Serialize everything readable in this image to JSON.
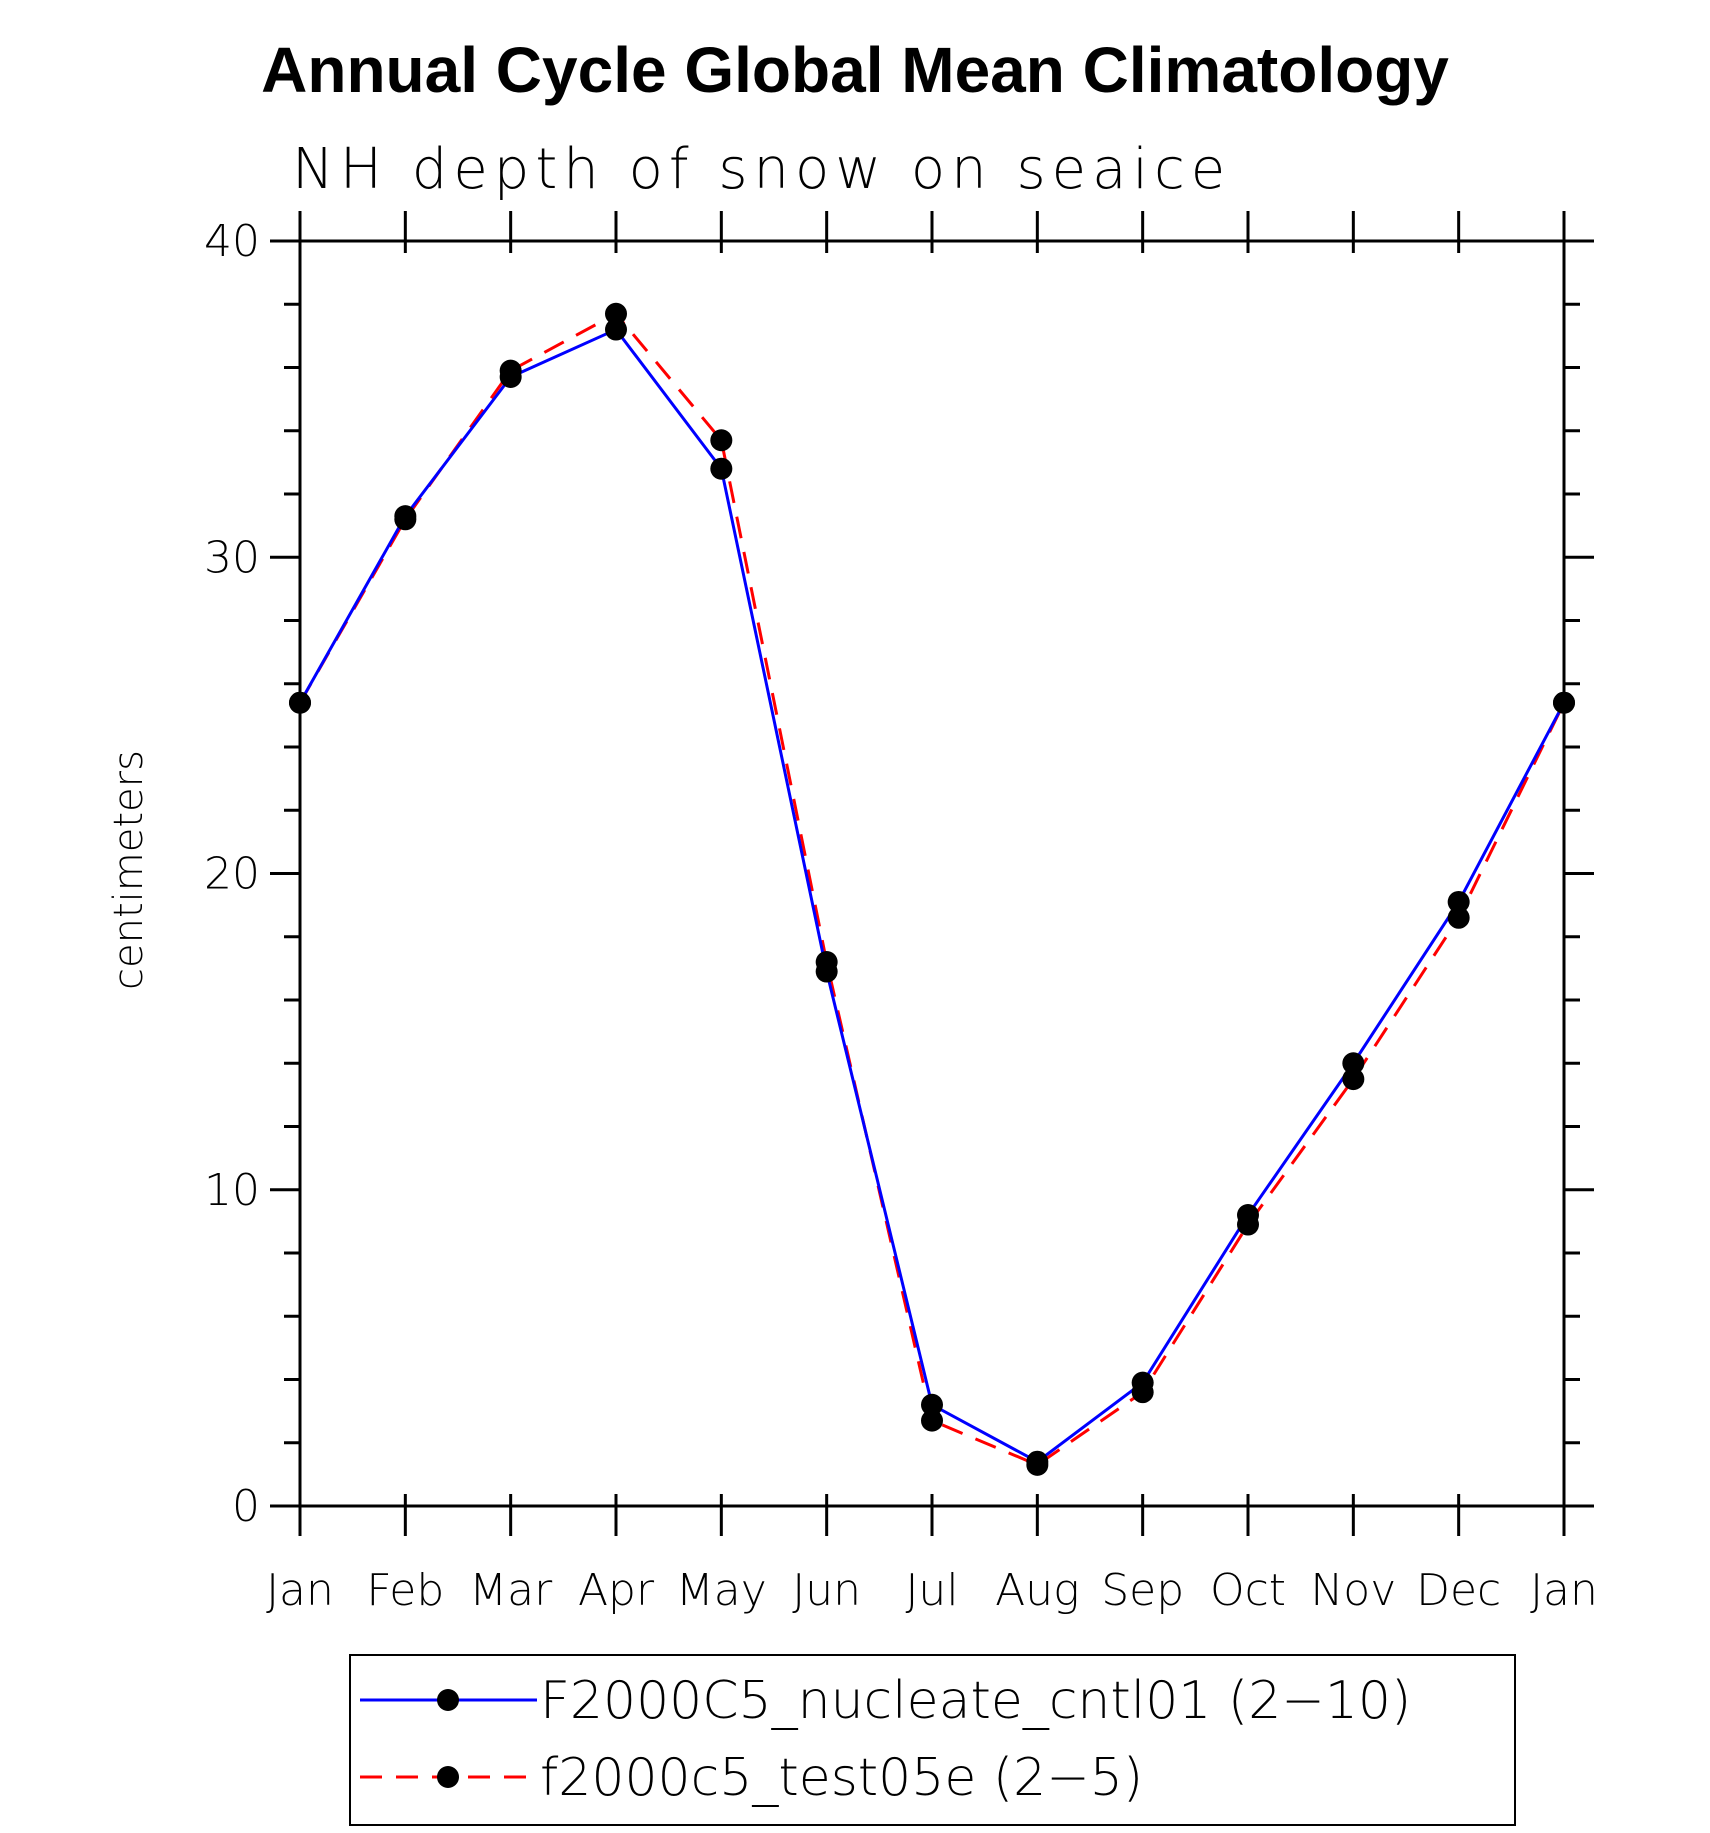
{
  "chart_data": {
    "type": "line",
    "title": "Annual Cycle Global Mean Climatology",
    "subtitle": "NH depth of snow on seaice",
    "xlabel": "",
    "ylabel": "centimeters",
    "categories": [
      "Jan",
      "Feb",
      "Mar",
      "Apr",
      "May",
      "Jun",
      "Jul",
      "Aug",
      "Sep",
      "Oct",
      "Nov",
      "Dec",
      "Jan"
    ],
    "yticks": [
      "0",
      "10",
      "20",
      "30",
      "40"
    ],
    "ylim": [
      0,
      40
    ],
    "grid": false,
    "legend_position": "bottom",
    "series": [
      {
        "name": "F2000C5_nucleate_cntl01 (2−10)",
        "color": "#0000ff",
        "line_style": "solid",
        "marker": "filled-circle",
        "values": [
          25.4,
          31.3,
          35.7,
          37.2,
          32.8,
          16.9,
          3.2,
          1.4,
          3.9,
          9.2,
          14.0,
          19.1,
          25.4
        ]
      },
      {
        "name": "f2000c5_test05e (2−5)",
        "color": "#ff0000",
        "line_style": "dashed",
        "marker": "filled-circle",
        "values": [
          25.4,
          31.2,
          35.9,
          37.7,
          33.7,
          17.2,
          2.7,
          1.3,
          3.6,
          8.9,
          13.5,
          18.6,
          25.4
        ]
      }
    ]
  }
}
